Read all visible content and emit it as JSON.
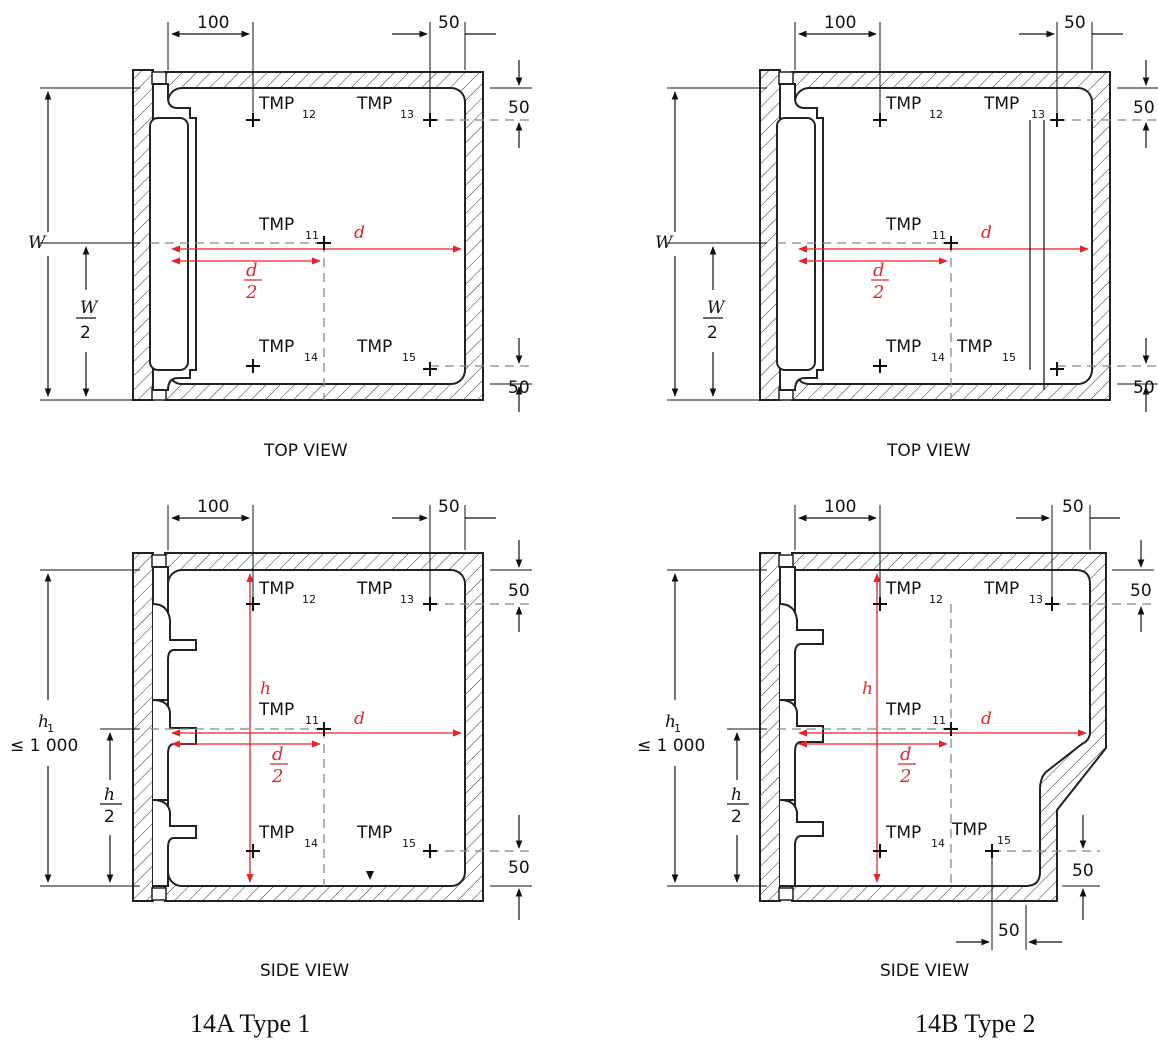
{
  "dims": {
    "d100": "100",
    "d50": "50",
    "h1_limit": "≤ 1 000"
  },
  "tmp": {
    "base": "TMP",
    "s11": "11",
    "s12": "12",
    "s13": "13",
    "s14": "14",
    "s15": "15"
  },
  "vars": {
    "W": "W",
    "h1": "h",
    "h1_sub": "1",
    "h": "h",
    "d": "d",
    "two": "2"
  },
  "views": {
    "top": "TOP VIEW",
    "side": "SIDE VIEW"
  },
  "captions": {
    "left": "14A Type 1",
    "right": "14B Type 2"
  },
  "colors": {
    "line": "#222222",
    "dash": "#888888",
    "red": "#e0262b"
  }
}
